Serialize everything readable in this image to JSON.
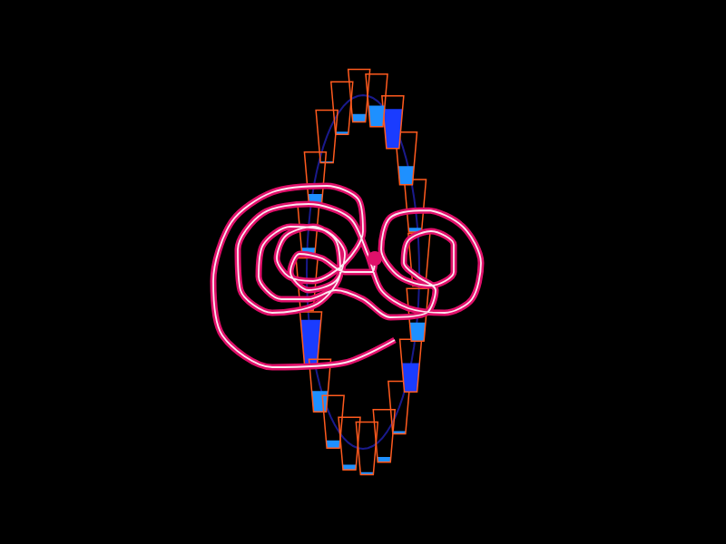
{
  "chart_data": {
    "type": "waterwheel",
    "xlim": [
      -40,
      40
    ],
    "ylim": [
      -30,
      30
    ],
    "tick_labels": false,
    "grid": false,
    "series": [
      {
        "type": "line",
        "color": "#e0106a",
        "marker": "circle",
        "line_style": "solid",
        "x": [
          3.5,
          -2,
          -10,
          -15.5,
          -16.5,
          -14.5,
          -10,
          -4,
          -0.5,
          0,
          -2,
          -5.5,
          -8.2,
          -9.5,
          -8.5,
          -5.5,
          -3,
          -2.5,
          -5,
          -10,
          -13.5,
          -13.8,
          -11,
          -6,
          -1.5,
          0.5,
          2,
          5,
          9,
          12,
          13,
          11,
          7,
          3,
          2,
          4,
          7.5,
          10,
          10,
          7.5,
          5,
          4.5,
          6,
          8,
          7,
          3,
          0,
          -3,
          -6,
          -9,
          -11.5,
          -11,
          -8,
          -4,
          -2,
          -3,
          -6,
          -8,
          -7,
          -4.5,
          -2,
          1,
          1.3
        ],
        "values": [
          -7.5,
          -10,
          -10.5,
          -7,
          -1,
          5.5,
          8.8,
          9.5,
          8,
          4.5,
          1,
          -1,
          -0.5,
          1.5,
          4,
          5,
          3.5,
          0,
          -3.5,
          -4.5,
          -2,
          2.5,
          6.5,
          7.5,
          6,
          2,
          -2,
          -4,
          -4.5,
          -3,
          1,
          5,
          6.8,
          6,
          2.5,
          -0.5,
          -1.5,
          0,
          3,
          4.5,
          3.5,
          1,
          -0.5,
          -2,
          -4.5,
          -5,
          -3,
          -2,
          -3,
          -3,
          -0.5,
          3,
          5,
          4.5,
          2,
          -1,
          -2,
          0,
          2,
          1.5,
          0,
          0,
          1.5
        ]
      },
      {
        "type": "cups",
        "color": "#ff5a1e",
        "angles": [
          4,
          22,
          40,
          58,
          76,
          94,
          112,
          130,
          148,
          166,
          184,
          202,
          220,
          238,
          256,
          274,
          292,
          310,
          328,
          346
        ],
        "values": [
          0.05,
          0.08,
          0.35,
          0.75,
          0.4,
          0.15,
          0.05,
          0.03,
          0.2,
          0.15,
          0.08,
          0.85,
          0.4,
          0.15,
          0.1,
          0.05,
          0.1,
          0.05,
          0.55,
          0.35
        ],
        "colors": [
          "#1e90ff",
          "#1e90ff",
          "#1e90ff",
          "#1a3cff",
          "#1e90ff",
          "#1e90ff",
          "#1e90ff",
          "#1e90ff",
          "#1e90ff",
          "#1e90ff",
          "#1e90ff",
          "#1a3cff",
          "#1e90ff",
          "#1e90ff",
          "#1e90ff",
          "#1e90ff",
          "#1e90ff",
          "#1e90ff",
          "#1a3cff",
          "#1e90ff"
        ]
      }
    ]
  }
}
